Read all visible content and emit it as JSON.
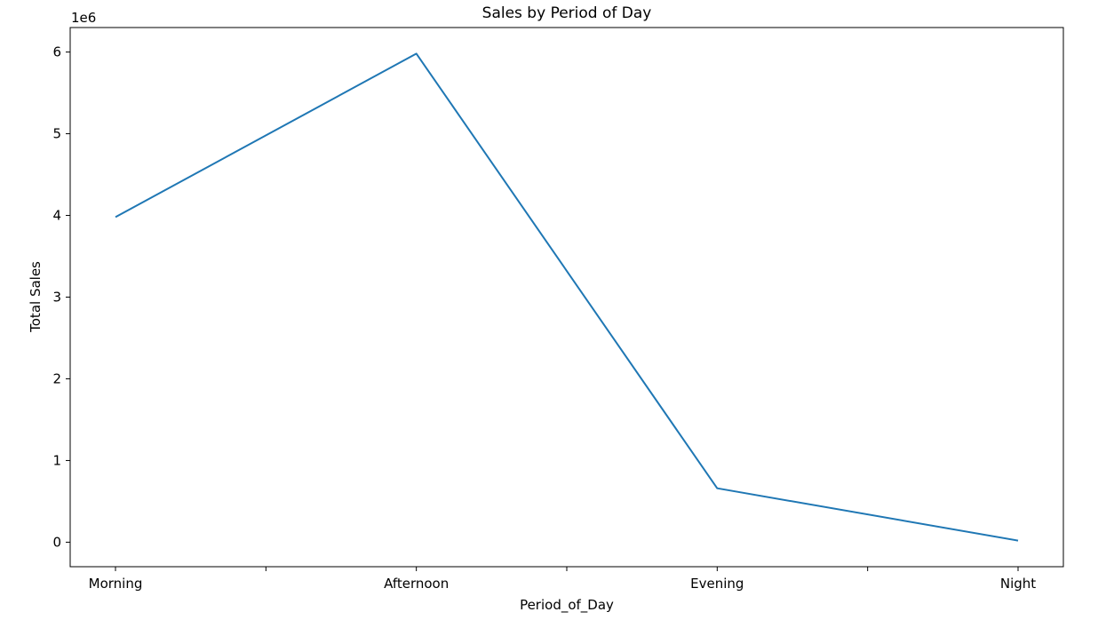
{
  "chart_data": {
    "type": "line",
    "title": "Sales by Period of Day",
    "xlabel": "Period_of_Day",
    "ylabel": "Total Sales",
    "y_offset_text": "1e6",
    "y_multiplier": 1000000,
    "categories": [
      "Morning",
      "Afternoon",
      "Evening",
      "Night"
    ],
    "series": [
      {
        "values": [
          3980000,
          5980000,
          660000,
          20000
        ],
        "color": "#1f77b4"
      }
    ],
    "ylim": [
      -0.3,
      6.3
    ],
    "yticks": [
      0,
      1,
      2,
      3,
      4,
      5,
      6
    ],
    "grid": false,
    "legend": "none"
  }
}
